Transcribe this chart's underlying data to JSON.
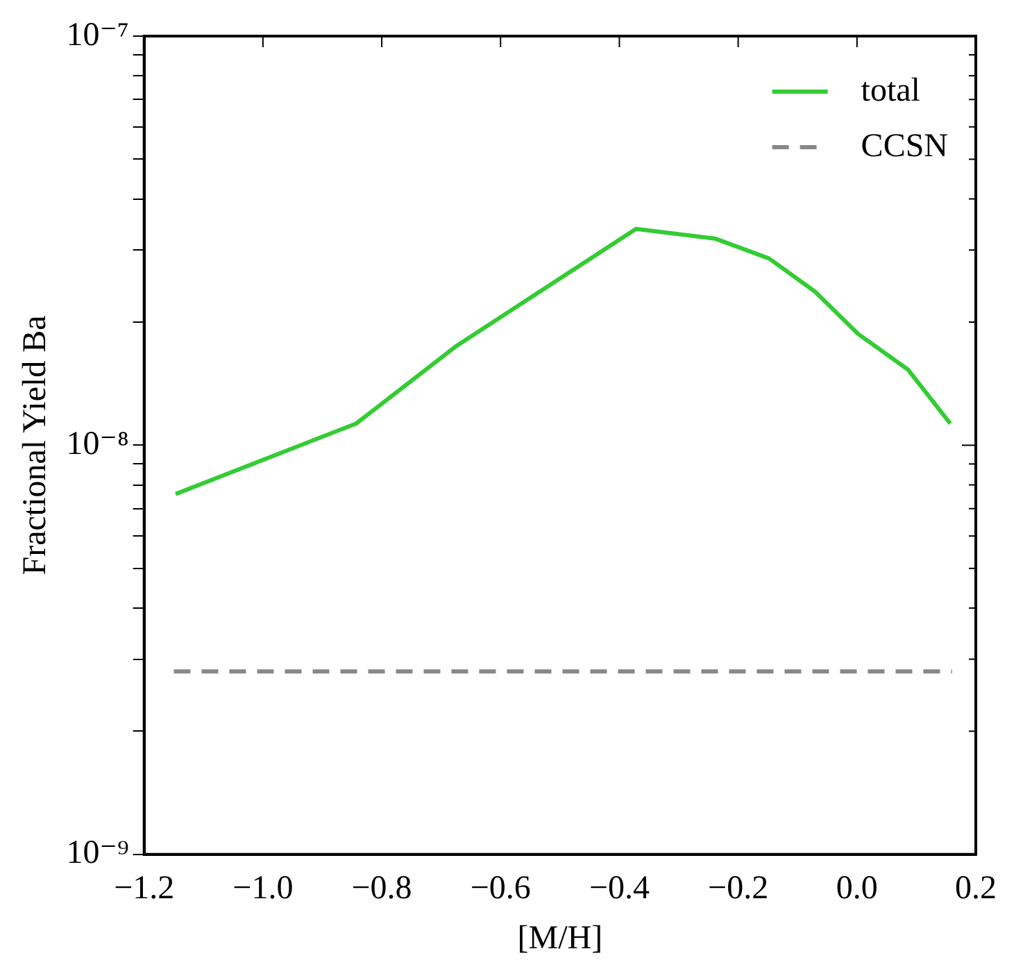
{
  "chart_data": {
    "type": "line",
    "xlabel": "[M/H]",
    "ylabel": "Fractional Yield Ba",
    "log": "y",
    "grid": false,
    "legend": "top right",
    "marker": "none",
    "xlim": [
      -1.2,
      0.2
    ],
    "xticks": [
      {
        "value": -1.2,
        "label": "−1.2"
      },
      {
        "value": -1.0,
        "label": "−1.0"
      },
      {
        "value": -0.8,
        "label": "−0.8"
      },
      {
        "value": -0.6,
        "label": "−0.6"
      },
      {
        "value": -0.4,
        "label": "−0.4"
      },
      {
        "value": -0.2,
        "label": "−0.2"
      },
      {
        "value": 0.0,
        "label": "0.0"
      },
      {
        "value": 0.2,
        "label": "0.2"
      }
    ],
    "ylim": [
      1e-09,
      1e-07
    ],
    "yticks": [
      {
        "value": 1e-09,
        "label": "10⁻⁹"
      },
      {
        "value": 2e-09,
        "label": null
      },
      {
        "value": 3e-09,
        "label": null
      },
      {
        "value": 4e-09,
        "label": null
      },
      {
        "value": 5e-09,
        "label": null
      },
      {
        "value": 6e-09,
        "label": null
      },
      {
        "value": 7e-09,
        "label": null
      },
      {
        "value": 8e-09,
        "label": null
      },
      {
        "value": 9e-09,
        "label": null
      },
      {
        "value": 1e-08,
        "label": "10⁻⁸"
      },
      {
        "value": 2e-08,
        "label": null
      },
      {
        "value": 3e-08,
        "label": null
      },
      {
        "value": 4e-08,
        "label": null
      },
      {
        "value": 5e-08,
        "label": null
      },
      {
        "value": 6e-08,
        "label": null
      },
      {
        "value": 7e-08,
        "label": null
      },
      {
        "value": 8e-08,
        "label": null
      },
      {
        "value": 9e-08,
        "label": null
      },
      {
        "value": 1e-07,
        "label": "10⁻⁷"
      }
    ],
    "series": [
      {
        "name": "total",
        "color": "#33cc33",
        "line_style": "solid",
        "x": [
          -1.147,
          -0.843,
          -0.674,
          -0.372,
          -0.239,
          -0.148,
          -0.07,
          0.002,
          0.086,
          0.157
        ],
        "values": [
          7.6e-09,
          1.13e-08,
          1.75e-08,
          3.38e-08,
          3.2e-08,
          2.86e-08,
          2.37e-08,
          1.87e-08,
          1.53e-08,
          1.13e-08
        ]
      },
      {
        "name": "CCSN",
        "color": "#888888",
        "line_style": "dashed",
        "x": [
          -1.15,
          0.16
        ],
        "values": [
          2.8e-09,
          2.8e-09
        ]
      }
    ]
  }
}
